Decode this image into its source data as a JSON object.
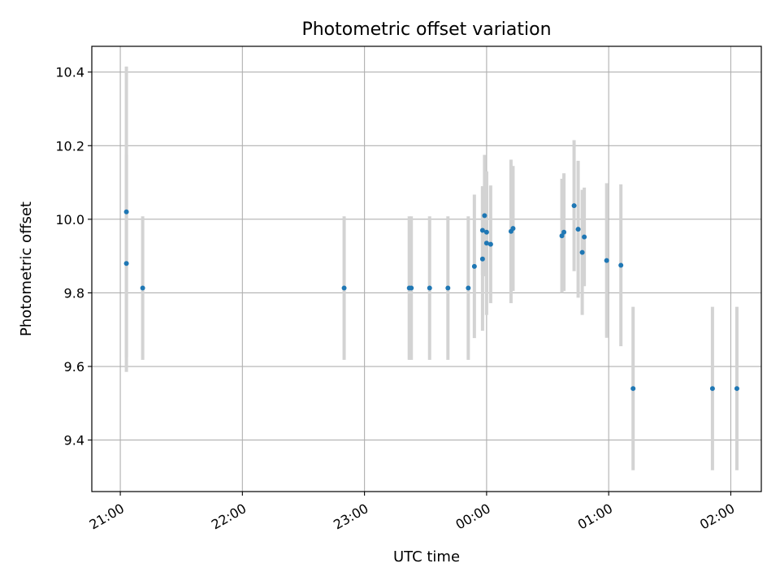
{
  "chart_data": {
    "type": "scatter",
    "title": "Photometric offset variation",
    "xlabel": "UTC time",
    "ylabel": "Photometric offset",
    "grid": true,
    "xlim": [
      "20:46",
      "02:15"
    ],
    "ylim": [
      9.26,
      10.47
    ],
    "x_ticks": [
      "21:00",
      "22:00",
      "23:00",
      "00:00",
      "01:00",
      "02:00"
    ],
    "y_ticks": [
      "9.4",
      "9.6",
      "9.8",
      "10.0",
      "10.2",
      "10.4"
    ],
    "colors": {
      "points": "#1f77b4",
      "errorbars": "#d3d3d3",
      "grid": "#b0b0b0"
    },
    "series": [
      {
        "points": [
          {
            "x": "21:03",
            "y": 10.02,
            "yerr": 0.395
          },
          {
            "x": "21:03",
            "y": 9.88,
            "yerr": 0.295
          },
          {
            "x": "21:11",
            "y": 9.813,
            "yerr": 0.195
          },
          {
            "x": "22:50",
            "y": 9.813,
            "yerr": 0.195
          },
          {
            "x": "23:22",
            "y": 9.813,
            "yerr": 0.195
          },
          {
            "x": "23:23",
            "y": 9.813,
            "yerr": 0.195
          },
          {
            "x": "23:32",
            "y": 9.813,
            "yerr": 0.195
          },
          {
            "x": "23:41",
            "y": 9.813,
            "yerr": 0.195
          },
          {
            "x": "23:51",
            "y": 9.813,
            "yerr": 0.195
          },
          {
            "x": "23:54",
            "y": 9.872,
            "yerr": 0.195
          },
          {
            "x": "23:58",
            "y": 9.892,
            "yerr": 0.195
          },
          {
            "x": "23:58",
            "y": 9.97,
            "yerr": 0.12
          },
          {
            "x": "23:59",
            "y": 10.01,
            "yerr": 0.165
          },
          {
            "x": "00:00",
            "y": 9.965,
            "yerr": 0.165
          },
          {
            "x": "00:00",
            "y": 9.935,
            "yerr": 0.195
          },
          {
            "x": "00:02",
            "y": 9.932,
            "yerr": 0.16
          },
          {
            "x": "00:12",
            "y": 9.967,
            "yerr": 0.195
          },
          {
            "x": "00:13",
            "y": 9.975,
            "yerr": 0.17
          },
          {
            "x": "00:37",
            "y": 9.955,
            "yerr": 0.155
          },
          {
            "x": "00:38",
            "y": 9.965,
            "yerr": 0.16
          },
          {
            "x": "00:43",
            "y": 10.037,
            "yerr": 0.178
          },
          {
            "x": "00:45",
            "y": 9.973,
            "yerr": 0.186
          },
          {
            "x": "00:47",
            "y": 9.91,
            "yerr": 0.17
          },
          {
            "x": "00:48",
            "y": 9.952,
            "yerr": 0.134
          },
          {
            "x": "00:59",
            "y": 9.888,
            "yerr": 0.21
          },
          {
            "x": "01:06",
            "y": 9.875,
            "yerr": 0.22
          },
          {
            "x": "01:12",
            "y": 9.54,
            "yerr": 0.222
          },
          {
            "x": "01:51",
            "y": 9.54,
            "yerr": 0.222
          },
          {
            "x": "02:03",
            "y": 9.54,
            "yerr": 0.222
          }
        ]
      }
    ]
  }
}
